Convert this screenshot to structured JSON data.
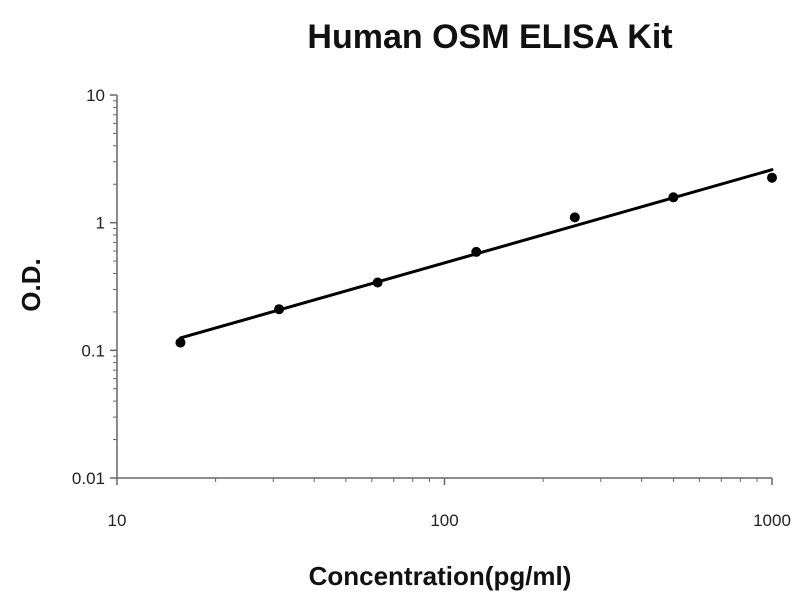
{
  "chart_data": {
    "type": "scatter",
    "title": "Human OSM ELISA Kit",
    "xlabel": "Concentration(pg/ml)",
    "ylabel": "O.D.",
    "x_scale": "log",
    "y_scale": "log",
    "xlim": [
      10,
      1000
    ],
    "ylim": [
      0.01,
      10
    ],
    "x_ticks": [
      "10",
      "100",
      "1000"
    ],
    "y_ticks": [
      "0.01",
      "0.1",
      "1",
      "10"
    ],
    "grid": false,
    "legend": "none",
    "series": [
      {
        "x": [
          15.625,
          31.25,
          62.5,
          125,
          250,
          500,
          1000
        ],
        "y": [
          0.115,
          0.21,
          0.34,
          0.59,
          1.1,
          1.58,
          2.25
        ]
      }
    ],
    "fit_line": {
      "x": [
        15.625,
        1000
      ],
      "y": [
        0.125,
        2.6
      ]
    },
    "colors": {
      "marks": "#000000",
      "axis": "#666666"
    }
  }
}
